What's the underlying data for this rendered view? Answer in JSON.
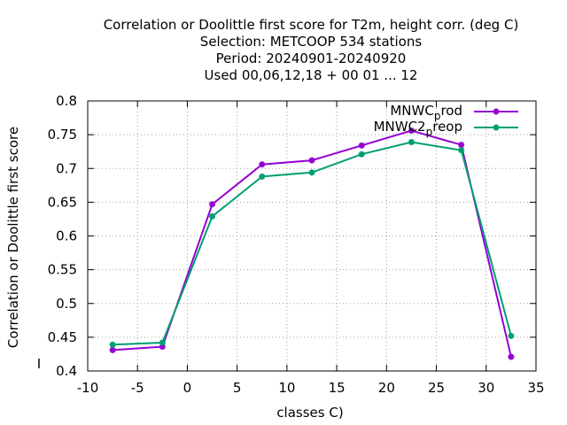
{
  "chart_data": {
    "type": "line",
    "title_lines": [
      "Correlation or Doolittle first score  for T2m, height corr. (deg C)",
      "Selection: METCOOP    534 stations",
      "Period: 20240901-20240920",
      "Used  00,06,12,18 + 00 01 ... 12"
    ],
    "xlabel": "classes C)",
    "ylabel": "Correlation or Doolittle first score",
    "xlim": [
      -10,
      35
    ],
    "ylim": [
      0.4,
      0.8
    ],
    "xticks": [
      -10,
      -5,
      0,
      5,
      10,
      15,
      20,
      25,
      30,
      35
    ],
    "yticks": [
      0.4,
      0.45,
      0.5,
      0.55,
      0.6,
      0.65,
      0.7,
      0.75,
      0.8
    ],
    "xtick_labels": [
      "-10",
      "-5",
      "0",
      "5",
      "10",
      "15",
      "20",
      "25",
      "30",
      "35"
    ],
    "ytick_labels": [
      "0.4",
      "0.45",
      "0.5",
      "0.55",
      "0.6",
      "0.65",
      "0.7",
      "0.75",
      "0.8"
    ],
    "grid": true,
    "legend_position": "top-right",
    "extra_mark": "I",
    "series": [
      {
        "name": "MNWC_prod",
        "legend_parts": [
          "MNWC",
          "p",
          "rod"
        ],
        "color": "#9400d3",
        "x": [
          -7.5,
          -2.5,
          2.5,
          7.5,
          12.5,
          17.5,
          22.5,
          27.5,
          32.5
        ],
        "y": [
          0.431,
          0.436,
          0.647,
          0.706,
          0.712,
          0.734,
          0.756,
          0.735,
          0.421
        ]
      },
      {
        "name": "MNWC2_preop",
        "legend_parts": [
          "MNWC2",
          "p",
          "reop"
        ],
        "color": "#009e73",
        "x": [
          -7.5,
          -2.5,
          2.5,
          7.5,
          12.5,
          17.5,
          22.5,
          27.5,
          32.5
        ],
        "y": [
          0.439,
          0.442,
          0.629,
          0.688,
          0.694,
          0.721,
          0.739,
          0.727,
          0.452
        ]
      }
    ]
  }
}
